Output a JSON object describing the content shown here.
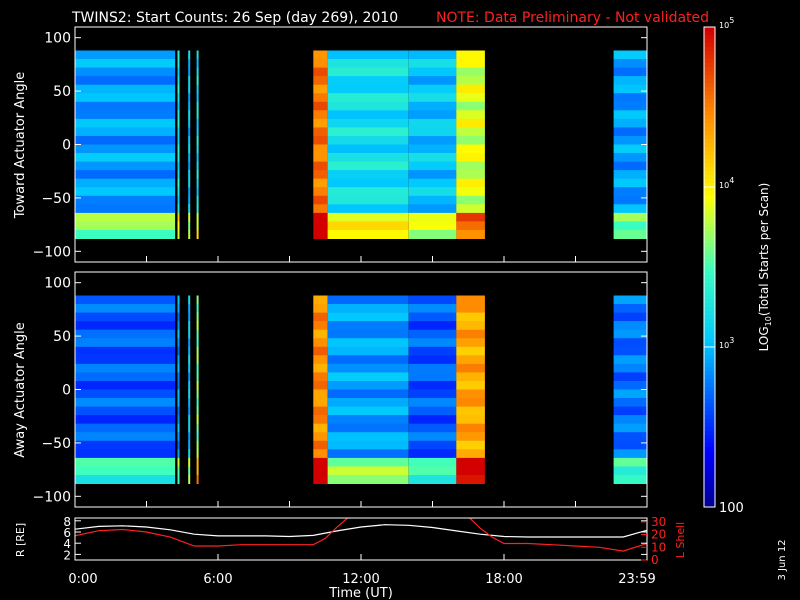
{
  "title": "TWINS2: Start Counts: 26 Sep (day 269), 2010",
  "note": "NOTE: Data Preliminary - Not validated",
  "date_stamp": "3 Jun 12",
  "colors": {
    "background": "#000000",
    "foreground": "#ffffff",
    "note": "#ff2020",
    "lshell": "#ff2020",
    "radius": "#ffffff"
  },
  "chart_data": [
    {
      "type": "heatmap",
      "panel": "toward",
      "ylabel": "Toward Actuator Angle",
      "ylim": [
        -110,
        110
      ],
      "yticks": [
        100,
        50,
        0,
        -50,
        -100
      ],
      "xlim": [
        0,
        24
      ],
      "angle_range": [
        -88,
        88
      ],
      "data_blocks": [
        {
          "from": 0.0,
          "to": 4.2,
          "level": 0.3
        },
        {
          "from": 4.3,
          "to": 4.35,
          "level": 0.42
        },
        {
          "from": 4.75,
          "to": 4.8,
          "level": 0.35
        },
        {
          "from": 5.1,
          "to": 5.15,
          "level": 0.4
        },
        {
          "from": 10.0,
          "to": 10.6,
          "level": 0.85
        },
        {
          "from": 10.6,
          "to": 14.0,
          "level": 0.4
        },
        {
          "from": 14.0,
          "to": 16.0,
          "level": 0.35
        },
        {
          "from": 16.0,
          "to": 17.2,
          "level": 0.62
        },
        {
          "from": 22.6,
          "to": 24.0,
          "level": 0.3
        }
      ]
    },
    {
      "type": "heatmap",
      "panel": "away",
      "ylabel": "Away Actuator Angle",
      "ylim": [
        -110,
        110
      ],
      "yticks": [
        100,
        50,
        0,
        -50,
        -100
      ],
      "xlim": [
        0,
        24
      ],
      "angle_range": [
        -88,
        88
      ],
      "data_blocks": [
        {
          "from": 0.0,
          "to": 4.2,
          "level": 0.22
        },
        {
          "from": 4.3,
          "to": 4.35,
          "level": 0.3
        },
        {
          "from": 4.75,
          "to": 4.8,
          "level": 0.35
        },
        {
          "from": 5.1,
          "to": 5.15,
          "level": 0.55
        },
        {
          "from": 10.0,
          "to": 10.6,
          "level": 0.82
        },
        {
          "from": 10.6,
          "to": 14.0,
          "level": 0.3
        },
        {
          "from": 14.0,
          "to": 16.0,
          "level": 0.22
        },
        {
          "from": 16.0,
          "to": 17.2,
          "level": 0.78
        },
        {
          "from": 22.6,
          "to": 24.0,
          "level": 0.25
        }
      ]
    },
    {
      "type": "line",
      "panel": "orbit",
      "ylabel": "R [RE]",
      "ylabel_right": "L Shell",
      "ylim": [
        1,
        8.5
      ],
      "yticks": [
        2,
        4,
        6,
        8
      ],
      "ylim_right": [
        0,
        33
      ],
      "yticks_right": [
        0,
        10,
        20,
        30
      ],
      "xlim": [
        0,
        24
      ],
      "xlabel": "Time (UT)",
      "xtick_labels": [
        "0:00",
        "6:00",
        "12:00",
        "18:00",
        "23:59"
      ],
      "xtick_values": [
        0,
        6,
        12,
        18,
        24
      ],
      "series": [
        {
          "name": "R [RE]",
          "axis": "left",
          "color": "#ffffff",
          "x": [
            0,
            1,
            2,
            3,
            4,
            5,
            6,
            7,
            8,
            9,
            10,
            11,
            12,
            13,
            14,
            15,
            16,
            17,
            18,
            19,
            20,
            21,
            22,
            23,
            24
          ],
          "y": [
            6.5,
            7.0,
            7.1,
            6.9,
            6.4,
            5.6,
            5.3,
            5.3,
            5.3,
            5.2,
            5.4,
            6.2,
            6.9,
            7.3,
            7.2,
            6.8,
            6.2,
            5.6,
            5.2,
            5.1,
            5.1,
            5.1,
            5.1,
            5.1,
            6.3
          ]
        },
        {
          "name": "L Shell",
          "axis": "right",
          "color": "#ff2020",
          "x": [
            0,
            1,
            2,
            3,
            4,
            5,
            6,
            7,
            8,
            9,
            10,
            10.5,
            11,
            11.5,
            16.5,
            17,
            17.5,
            18,
            19,
            20,
            21,
            22,
            23,
            24
          ],
          "y": [
            19,
            23,
            24,
            22,
            18,
            11,
            11,
            12,
            12,
            12,
            12,
            17,
            26,
            34,
            34,
            25,
            18,
            13,
            13,
            12,
            11,
            10,
            7,
            13
          ]
        }
      ]
    },
    {
      "type": "heatmap",
      "panel": "colorbar",
      "label": "LOG10(Total Starts per Scan)",
      "label_base": "LOG",
      "label_sub": "10",
      "label_rest": "(Total Starts per Scan)",
      "scale": "log",
      "range": [
        100,
        100000
      ],
      "ticks": [
        {
          "value": 100,
          "base": "100",
          "exp": ""
        },
        {
          "value": 1000,
          "base": "10",
          "exp": "3"
        },
        {
          "value": 10000,
          "base": "10",
          "exp": "4"
        },
        {
          "value": 100000,
          "base": "10",
          "exp": "5"
        }
      ]
    }
  ]
}
